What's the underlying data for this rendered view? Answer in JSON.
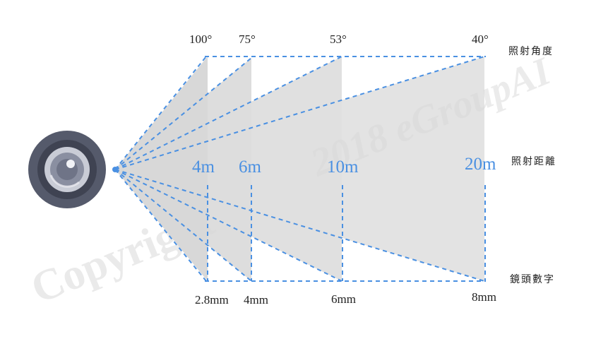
{
  "row_labels": {
    "angle": "照射角度",
    "distance": "照射距離",
    "lens": "鏡頭數字"
  },
  "lenses": [
    {
      "angle": "100°",
      "distance": "4m",
      "lens": "2.8mm"
    },
    {
      "angle": "75°",
      "distance": "6m",
      "lens": "4mm"
    },
    {
      "angle": "53°",
      "distance": "10m",
      "lens": "6mm"
    },
    {
      "angle": "40°",
      "distance": "20m",
      "lens": "8mm"
    }
  ],
  "watermark": {
    "left": "Copyright",
    "right": "2018 eGroupAI"
  },
  "colors": {
    "dash": "#4a90e2",
    "beam": "#e2e2e2",
    "camera_outer": "#555a6b",
    "camera_ring": "#c9ccd6",
    "camera_lens": "#8a8fa1"
  }
}
